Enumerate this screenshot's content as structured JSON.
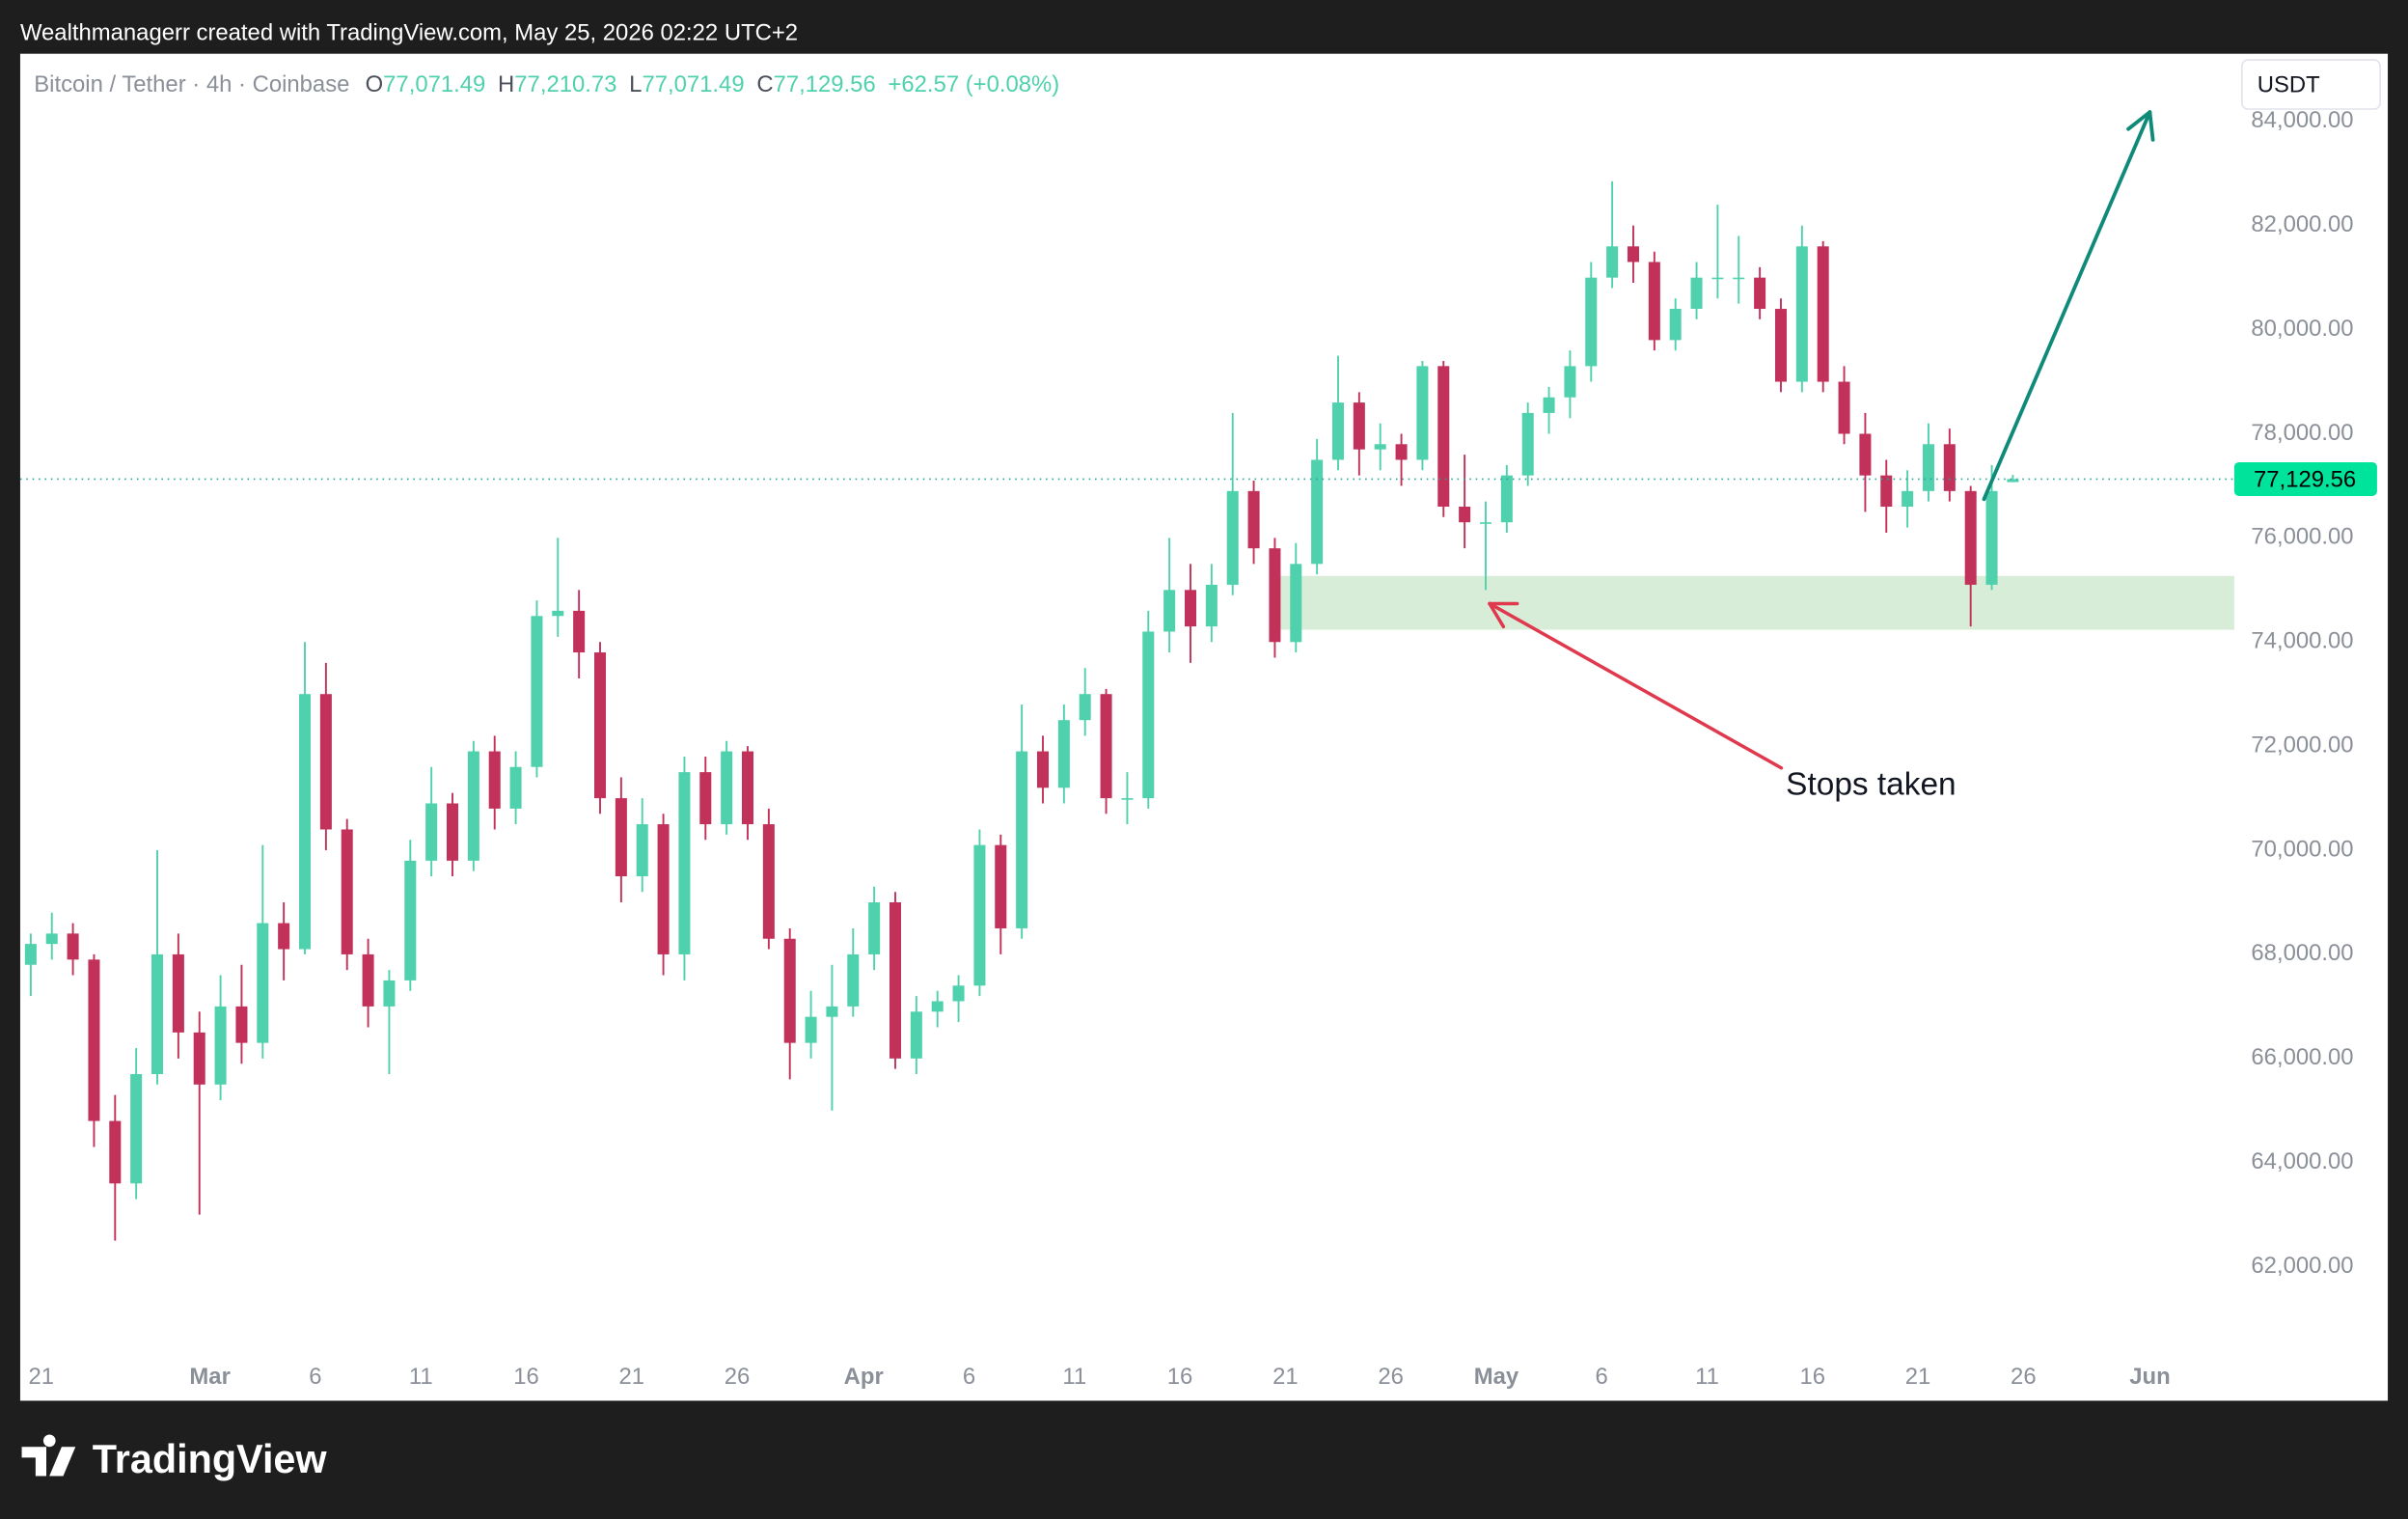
{
  "chart_data": {
    "type": "candlestick",
    "attribution": "Wealthmanagerr created with TradingView.com, May 25, 2026 02:22 UTC+2",
    "title": "Bitcoin / Tether · 4h · Coinbase",
    "ohlc_legend": [
      {
        "key": "O",
        "value": "77,071.49"
      },
      {
        "key": "H",
        "value": "77,210.73"
      },
      {
        "key": "L",
        "value": "77,071.49"
      },
      {
        "key": "C",
        "value": "77,129.56"
      }
    ],
    "change": "+62.57 (+0.08%)",
    "currency": "USDT",
    "annotation": "Stops taken",
    "branding": "TradingView",
    "up_color": "#4fd1ad",
    "down_color": "#c2315a",
    "grid": false,
    "last_price": {
      "value": 77129.56,
      "label": "77,129.56"
    },
    "x": [
      "2026-02-20",
      "2026-02-21",
      "2026-02-22",
      "2026-02-23",
      "2026-02-24",
      "2026-02-25",
      "2026-02-26",
      "2026-02-27",
      "2026-02-28",
      "2026-03-01",
      "2026-03-02",
      "2026-03-03",
      "2026-03-04",
      "2026-03-05",
      "2026-03-06",
      "2026-03-07",
      "2026-03-08",
      "2026-03-09",
      "2026-03-10",
      "2026-03-11",
      "2026-03-12",
      "2026-03-13",
      "2026-03-14",
      "2026-03-15",
      "2026-03-16",
      "2026-03-17",
      "2026-03-18",
      "2026-03-19",
      "2026-03-20",
      "2026-03-21",
      "2026-03-22",
      "2026-03-23",
      "2026-03-24",
      "2026-03-25",
      "2026-03-26",
      "2026-03-27",
      "2026-03-28",
      "2026-03-29",
      "2026-03-30",
      "2026-03-31",
      "2026-04-01",
      "2026-04-02",
      "2026-04-03",
      "2026-04-04",
      "2026-04-05",
      "2026-04-06",
      "2026-04-07",
      "2026-04-08",
      "2026-04-09",
      "2026-04-10",
      "2026-04-11",
      "2026-04-12",
      "2026-04-13",
      "2026-04-14",
      "2026-04-15",
      "2026-04-16",
      "2026-04-17",
      "2026-04-18",
      "2026-04-19",
      "2026-04-20",
      "2026-04-21",
      "2026-04-22",
      "2026-04-23",
      "2026-04-24",
      "2026-04-25",
      "2026-04-26",
      "2026-04-27",
      "2026-04-28",
      "2026-04-29",
      "2026-04-30",
      "2026-05-01",
      "2026-05-02",
      "2026-05-03",
      "2026-05-04",
      "2026-05-05",
      "2026-05-06",
      "2026-05-07",
      "2026-05-08",
      "2026-05-09",
      "2026-05-10",
      "2026-05-11",
      "2026-05-12",
      "2026-05-13",
      "2026-05-14",
      "2026-05-15",
      "2026-05-16",
      "2026-05-17",
      "2026-05-18",
      "2026-05-19",
      "2026-05-20",
      "2026-05-21",
      "2026-05-22",
      "2026-05-23",
      "2026-05-24",
      "2026-05-25"
    ],
    "open": [
      67800,
      68200,
      68400,
      67900,
      64800,
      63600,
      65700,
      68000,
      66500,
      65500,
      67000,
      66300,
      68600,
      68100,
      73000,
      70400,
      68000,
      67000,
      67500,
      69800,
      70900,
      69800,
      71900,
      70800,
      71600,
      74500,
      74600,
      73800,
      71000,
      69500,
      70500,
      68000,
      71500,
      70500,
      71900,
      70500,
      68300,
      66300,
      66800,
      67000,
      68000,
      69000,
      66000,
      66900,
      67100,
      67400,
      70100,
      68500,
      71900,
      71200,
      72500,
      73000,
      71000,
      71000,
      74200,
      75000,
      74300,
      75100,
      76900,
      75800,
      74000,
      75500,
      77500,
      78600,
      77700,
      77800,
      77500,
      79300,
      76600,
      76300,
      76300,
      77200,
      78400,
      78700,
      79300,
      81000,
      81600,
      81300,
      79800,
      80400,
      81000,
      81000,
      81000,
      80400,
      79000,
      81600,
      79000,
      78000,
      77200,
      76600,
      76900,
      77800,
      76900,
      75100,
      77071.49
    ],
    "high": [
      68400,
      68800,
      68600,
      68000,
      65300,
      66200,
      70000,
      68400,
      66900,
      67600,
      67800,
      70100,
      69000,
      74000,
      73600,
      70600,
      68300,
      67700,
      70200,
      71600,
      71100,
      72100,
      72200,
      71900,
      74800,
      76000,
      75000,
      74000,
      71400,
      71000,
      70700,
      71800,
      71800,
      72100,
      72000,
      70800,
      68500,
      67300,
      67800,
      68500,
      69300,
      69200,
      67200,
      67300,
      67600,
      70400,
      70300,
      72800,
      72200,
      72800,
      73500,
      73100,
      71500,
      74600,
      76000,
      75500,
      75500,
      78400,
      77100,
      76000,
      75900,
      77900,
      79500,
      78800,
      78200,
      78000,
      79400,
      79400,
      77600,
      76700,
      77400,
      78600,
      78900,
      79600,
      81300,
      82850,
      82000,
      81500,
      80600,
      81300,
      82400,
      81800,
      81200,
      80600,
      82000,
      81700,
      79300,
      78400,
      77500,
      77300,
      78200,
      78100,
      77000,
      77400,
      77210.73
    ],
    "low": [
      67200,
      67900,
      67600,
      64300,
      62500,
      63300,
      65500,
      66000,
      63000,
      65200,
      65900,
      66000,
      67500,
      68000,
      70000,
      67700,
      66600,
      65700,
      67300,
      69500,
      69500,
      69600,
      70400,
      70500,
      71400,
      74100,
      73300,
      70700,
      69000,
      69200,
      67600,
      67500,
      70200,
      70300,
      70200,
      68100,
      65600,
      66000,
      65000,
      66800,
      67700,
      65800,
      65700,
      66600,
      66700,
      67200,
      68000,
      68300,
      70900,
      70900,
      72200,
      70700,
      70500,
      70800,
      73800,
      73600,
      74000,
      74900,
      75500,
      73700,
      73800,
      75300,
      77300,
      77200,
      77300,
      77000,
      77300,
      76400,
      75800,
      75000,
      76100,
      77000,
      78000,
      78300,
      79000,
      80800,
      80900,
      79600,
      79600,
      80200,
      80600,
      80500,
      80200,
      78800,
      78800,
      78800,
      77800,
      76500,
      76100,
      76200,
      76700,
      76700,
      74300,
      75000,
      77071.49
    ],
    "close": [
      68200,
      68400,
      67900,
      64800,
      63600,
      65700,
      68000,
      66500,
      65500,
      67000,
      66300,
      68600,
      68100,
      73000,
      70400,
      68000,
      67000,
      67500,
      69800,
      70900,
      69800,
      71900,
      70800,
      71600,
      74500,
      74600,
      73800,
      71000,
      69500,
      70500,
      68000,
      71500,
      70500,
      71900,
      70500,
      68300,
      66300,
      66800,
      67000,
      68000,
      69000,
      66000,
      66900,
      67100,
      67400,
      70100,
      68500,
      71900,
      71200,
      72500,
      73000,
      71000,
      71000,
      74200,
      75000,
      74300,
      75100,
      76900,
      75800,
      74000,
      75500,
      77500,
      78600,
      77700,
      77800,
      77500,
      79300,
      76600,
      76300,
      76300,
      77200,
      78400,
      78700,
      79300,
      81000,
      81600,
      81300,
      79800,
      80400,
      81000,
      81000,
      81000,
      80400,
      79000,
      81600,
      79000,
      78000,
      77200,
      76600,
      76900,
      77800,
      76900,
      75100,
      76900,
      77129.56
    ],
    "xlim": [
      "2026-02-20",
      "2026-06-05"
    ],
    "ylim": [
      60370,
      85300
    ],
    "xticks": [
      {
        "value": "2026-02-21",
        "label": "21"
      },
      {
        "value": "2026-03-01",
        "label": "Mar"
      },
      {
        "value": "2026-03-06",
        "label": "6"
      },
      {
        "value": "2026-03-11",
        "label": "11"
      },
      {
        "value": "2026-03-16",
        "label": "16"
      },
      {
        "value": "2026-03-21",
        "label": "21"
      },
      {
        "value": "2026-03-26",
        "label": "26"
      },
      {
        "value": "2026-04-01",
        "label": "Apr"
      },
      {
        "value": "2026-04-06",
        "label": "6"
      },
      {
        "value": "2026-04-11",
        "label": "11"
      },
      {
        "value": "2026-04-16",
        "label": "16"
      },
      {
        "value": "2026-04-21",
        "label": "21"
      },
      {
        "value": "2026-04-26",
        "label": "26"
      },
      {
        "value": "2026-05-01",
        "label": "May"
      },
      {
        "value": "2026-05-06",
        "label": "6"
      },
      {
        "value": "2026-05-11",
        "label": "11"
      },
      {
        "value": "2026-05-16",
        "label": "16"
      },
      {
        "value": "2026-05-21",
        "label": "21"
      },
      {
        "value": "2026-05-26",
        "label": "26"
      },
      {
        "value": "2026-06-01",
        "label": "Jun"
      }
    ],
    "yticks": [
      {
        "value": 62000,
        "label": "62,000.00"
      },
      {
        "value": 64000,
        "label": "64,000.00"
      },
      {
        "value": 66000,
        "label": "66,000.00"
      },
      {
        "value": 68000,
        "label": "68,000.00"
      },
      {
        "value": 70000,
        "label": "70,000.00"
      },
      {
        "value": 72000,
        "label": "72,000.00"
      },
      {
        "value": 74000,
        "label": "74,000.00"
      },
      {
        "value": 76000,
        "label": "76,000.00"
      },
      {
        "value": 78000,
        "label": "78,000.00"
      },
      {
        "value": 80000,
        "label": "80,000.00"
      },
      {
        "value": 82000,
        "label": "82,000.00"
      },
      {
        "value": 84000,
        "label": "84,000.00"
      }
    ]
  }
}
